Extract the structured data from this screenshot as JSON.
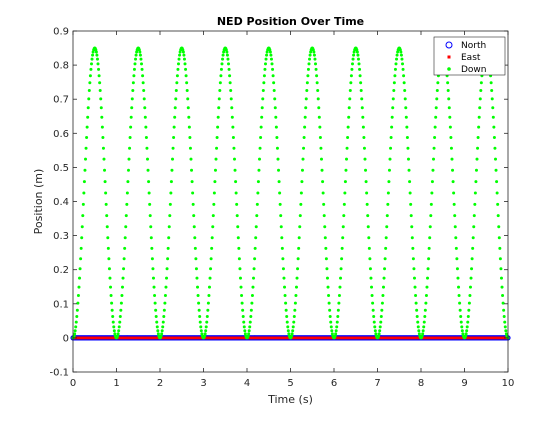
{
  "chart_data": {
    "type": "scatter",
    "title": "NED Position Over Time",
    "xlabel": "Time (s)",
    "ylabel": "Position (m)",
    "xlim": [
      0,
      10
    ],
    "ylim": [
      -0.1,
      0.9
    ],
    "xticks": [
      0,
      1,
      2,
      3,
      4,
      5,
      6,
      7,
      8,
      9,
      10
    ],
    "yticks": [
      -0.1,
      0,
      0.1,
      0.2,
      0.3,
      0.4,
      0.5,
      0.6,
      0.7,
      0.8,
      0.9
    ],
    "grid": false,
    "legend_position": "top-right",
    "series": [
      {
        "name": "North",
        "marker": "circle",
        "color": "#0000ff",
        "description_values": "constant 0 for all t",
        "x": [
          0,
          10
        ],
        "y": [
          0,
          0
        ],
        "sample_count": 801
      },
      {
        "name": "East",
        "marker": "square",
        "color": "#ff0000",
        "x": [
          0,
          10
        ],
        "y": [
          0,
          0
        ],
        "sample_count": 801
      },
      {
        "name": "Down",
        "marker": "dot",
        "color": "#00ff00",
        "x": [
          0,
          0.25,
          0.5,
          0.75,
          1,
          1.25,
          1.5,
          1.75,
          2,
          2.25,
          2.5,
          2.75,
          3,
          3.25,
          3.5,
          3.75,
          4,
          4.25,
          4.5,
          4.75,
          5,
          5.25,
          5.5,
          5.75,
          6,
          6.25,
          6.5,
          6.75,
          7,
          7.25,
          7.5,
          7.75,
          8,
          8.25,
          8.5,
          8.75,
          9,
          9.25,
          9.5,
          9.75,
          10
        ],
        "y": [
          0,
          0.425,
          0.85,
          0.425,
          0,
          0.425,
          0.85,
          0.425,
          0,
          0.425,
          0.85,
          0.425,
          0,
          0.425,
          0.85,
          0.425,
          0,
          0.425,
          0.85,
          0.425,
          0,
          0.425,
          0.85,
          0.425,
          0,
          0.425,
          0.85,
          0.425,
          0,
          0.425,
          0.85,
          0.425,
          0,
          0.425,
          0.85,
          0.425,
          0,
          0.425,
          0.85,
          0.425,
          0
        ],
        "sample_count": 801
      }
    ]
  }
}
